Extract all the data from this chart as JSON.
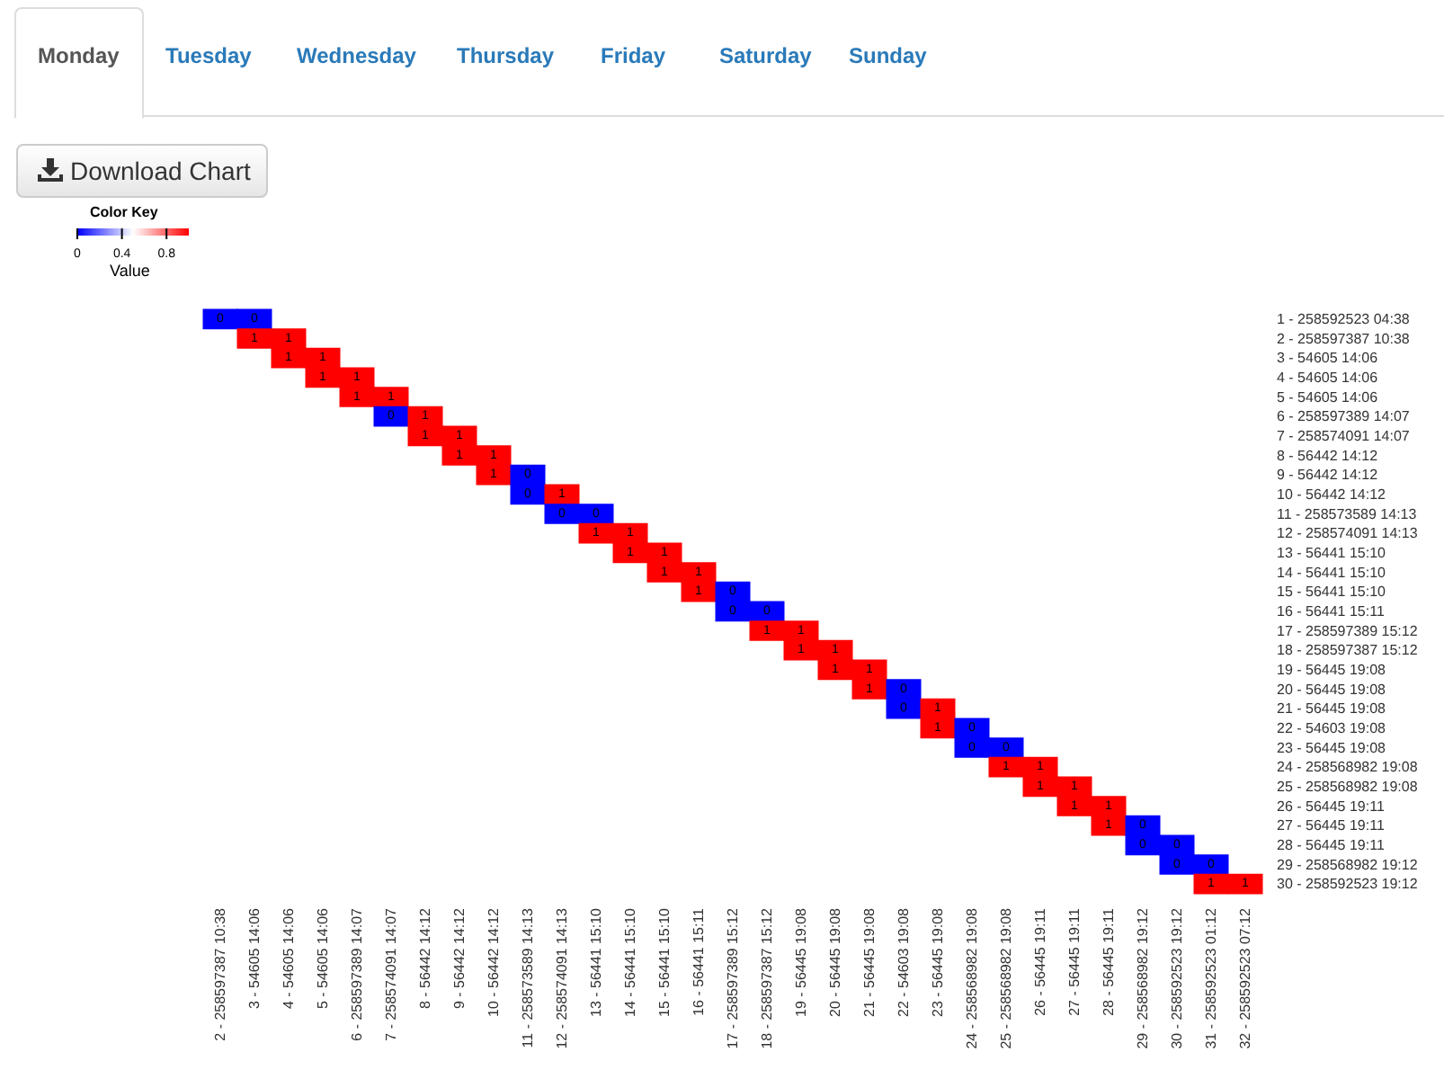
{
  "chart_data": {
    "type": "heatmap",
    "annotations": [
      "Monday",
      "Tuesday",
      "Wednesday",
      "Thursday",
      "Friday",
      "Saturday",
      "Sunday",
      "Download Chart"
    ],
    "legend_title": "Color Key",
    "clabel": "Value",
    "clim": [
      0,
      1
    ],
    "cticks": [
      0,
      0.4,
      0.8
    ],
    "colors": [
      "#0000ff",
      "#ffffff",
      "#ff0000"
    ],
    "data_labels": true,
    "categories": [
      "2 - 258597387 10:38",
      "3 - 54605 14:06",
      "4 - 54605 14:06",
      "5 - 54605 14:06",
      "6 - 258597389 14:07",
      "7 - 258574091 14:07",
      "8 - 56442 14:12",
      "9 - 56442 14:12",
      "10 - 56442 14:12",
      "11 - 258573589 14:13",
      "12 - 258574091 14:13",
      "13 - 56441 15:10",
      "14 - 56441 15:10",
      "15 - 56441 15:10",
      "16 - 56441 15:11",
      "17 - 258597389 15:12",
      "18 - 258597387 15:12",
      "19 - 56445 19:08",
      "20 - 56445 19:08",
      "21 - 56445 19:08",
      "22 - 54603 19:08",
      "23 - 56445 19:08",
      "24 - 258568982 19:08",
      "25 - 258568982 19:08",
      "26 - 56445 19:11",
      "27 - 56445 19:11",
      "28 - 56445 19:11",
      "29 - 258568982 19:12",
      "30 - 258592523 19:12",
      "31 - 258592523 01:12",
      "32 - 258592523 07:12"
    ],
    "y_categories": [
      "1 - 258592523 04:38",
      "2 - 258597387 10:38",
      "3 - 54605 14:06",
      "4 - 54605 14:06",
      "5 - 54605 14:06",
      "6 - 258597389 14:07",
      "7 - 258574091 14:07",
      "8 - 56442 14:12",
      "9 - 56442 14:12",
      "10 - 56442 14:12",
      "11 - 258573589 14:13",
      "12 - 258574091 14:13",
      "13 - 56441 15:10",
      "14 - 56441 15:10",
      "15 - 56441 15:10",
      "16 - 56441 15:11",
      "17 - 258597389 15:12",
      "18 - 258597387 15:12",
      "19 - 56445 19:08",
      "20 - 56445 19:08",
      "21 - 56445 19:08",
      "22 - 54603 19:08",
      "23 - 56445 19:08",
      "24 - 258568982 19:08",
      "25 - 258568982 19:08",
      "26 - 56445 19:11",
      "27 - 56445 19:11",
      "28 - 56445 19:11",
      "29 - 258568982 19:12",
      "30 - 258592523 19:12"
    ],
    "cells": [
      [
        0,
        0,
        null,
        null,
        null,
        null,
        null,
        null,
        null,
        null,
        null,
        null,
        null,
        null,
        null,
        null,
        null,
        null,
        null,
        null,
        null,
        null,
        null,
        null,
        null,
        null,
        null,
        null,
        null,
        null,
        null
      ],
      [
        null,
        1,
        1,
        null,
        null,
        null,
        null,
        null,
        null,
        null,
        null,
        null,
        null,
        null,
        null,
        null,
        null,
        null,
        null,
        null,
        null,
        null,
        null,
        null,
        null,
        null,
        null,
        null,
        null,
        null,
        null
      ],
      [
        null,
        null,
        1,
        1,
        null,
        null,
        null,
        null,
        null,
        null,
        null,
        null,
        null,
        null,
        null,
        null,
        null,
        null,
        null,
        null,
        null,
        null,
        null,
        null,
        null,
        null,
        null,
        null,
        null,
        null,
        null
      ],
      [
        null,
        null,
        null,
        1,
        1,
        null,
        null,
        null,
        null,
        null,
        null,
        null,
        null,
        null,
        null,
        null,
        null,
        null,
        null,
        null,
        null,
        null,
        null,
        null,
        null,
        null,
        null,
        null,
        null,
        null,
        null
      ],
      [
        null,
        null,
        null,
        null,
        1,
        1,
        null,
        null,
        null,
        null,
        null,
        null,
        null,
        null,
        null,
        null,
        null,
        null,
        null,
        null,
        null,
        null,
        null,
        null,
        null,
        null,
        null,
        null,
        null,
        null,
        null
      ],
      [
        null,
        null,
        null,
        null,
        null,
        0,
        1,
        null,
        null,
        null,
        null,
        null,
        null,
        null,
        null,
        null,
        null,
        null,
        null,
        null,
        null,
        null,
        null,
        null,
        null,
        null,
        null,
        null,
        null,
        null,
        null
      ],
      [
        null,
        null,
        null,
        null,
        null,
        null,
        1,
        1,
        null,
        null,
        null,
        null,
        null,
        null,
        null,
        null,
        null,
        null,
        null,
        null,
        null,
        null,
        null,
        null,
        null,
        null,
        null,
        null,
        null,
        null,
        null
      ],
      [
        null,
        null,
        null,
        null,
        null,
        null,
        null,
        1,
        1,
        null,
        null,
        null,
        null,
        null,
        null,
        null,
        null,
        null,
        null,
        null,
        null,
        null,
        null,
        null,
        null,
        null,
        null,
        null,
        null,
        null,
        null
      ],
      [
        null,
        null,
        null,
        null,
        null,
        null,
        null,
        null,
        1,
        0,
        null,
        null,
        null,
        null,
        null,
        null,
        null,
        null,
        null,
        null,
        null,
        null,
        null,
        null,
        null,
        null,
        null,
        null,
        null,
        null,
        null
      ],
      [
        null,
        null,
        null,
        null,
        null,
        null,
        null,
        null,
        null,
        0,
        1,
        null,
        null,
        null,
        null,
        null,
        null,
        null,
        null,
        null,
        null,
        null,
        null,
        null,
        null,
        null,
        null,
        null,
        null,
        null,
        null
      ],
      [
        null,
        null,
        null,
        null,
        null,
        null,
        null,
        null,
        null,
        null,
        0,
        0,
        null,
        null,
        null,
        null,
        null,
        null,
        null,
        null,
        null,
        null,
        null,
        null,
        null,
        null,
        null,
        null,
        null,
        null,
        null
      ],
      [
        null,
        null,
        null,
        null,
        null,
        null,
        null,
        null,
        null,
        null,
        null,
        1,
        1,
        null,
        null,
        null,
        null,
        null,
        null,
        null,
        null,
        null,
        null,
        null,
        null,
        null,
        null,
        null,
        null,
        null,
        null
      ],
      [
        null,
        null,
        null,
        null,
        null,
        null,
        null,
        null,
        null,
        null,
        null,
        null,
        1,
        1,
        null,
        null,
        null,
        null,
        null,
        null,
        null,
        null,
        null,
        null,
        null,
        null,
        null,
        null,
        null,
        null,
        null
      ],
      [
        null,
        null,
        null,
        null,
        null,
        null,
        null,
        null,
        null,
        null,
        null,
        null,
        null,
        1,
        1,
        null,
        null,
        null,
        null,
        null,
        null,
        null,
        null,
        null,
        null,
        null,
        null,
        null,
        null,
        null,
        null
      ],
      [
        null,
        null,
        null,
        null,
        null,
        null,
        null,
        null,
        null,
        null,
        null,
        null,
        null,
        null,
        1,
        0,
        null,
        null,
        null,
        null,
        null,
        null,
        null,
        null,
        null,
        null,
        null,
        null,
        null,
        null,
        null
      ],
      [
        null,
        null,
        null,
        null,
        null,
        null,
        null,
        null,
        null,
        null,
        null,
        null,
        null,
        null,
        null,
        0,
        0,
        null,
        null,
        null,
        null,
        null,
        null,
        null,
        null,
        null,
        null,
        null,
        null,
        null,
        null
      ],
      [
        null,
        null,
        null,
        null,
        null,
        null,
        null,
        null,
        null,
        null,
        null,
        null,
        null,
        null,
        null,
        null,
        1,
        1,
        null,
        null,
        null,
        null,
        null,
        null,
        null,
        null,
        null,
        null,
        null,
        null,
        null
      ],
      [
        null,
        null,
        null,
        null,
        null,
        null,
        null,
        null,
        null,
        null,
        null,
        null,
        null,
        null,
        null,
        null,
        null,
        1,
        1,
        null,
        null,
        null,
        null,
        null,
        null,
        null,
        null,
        null,
        null,
        null,
        null
      ],
      [
        null,
        null,
        null,
        null,
        null,
        null,
        null,
        null,
        null,
        null,
        null,
        null,
        null,
        null,
        null,
        null,
        null,
        null,
        1,
        1,
        null,
        null,
        null,
        null,
        null,
        null,
        null,
        null,
        null,
        null,
        null
      ],
      [
        null,
        null,
        null,
        null,
        null,
        null,
        null,
        null,
        null,
        null,
        null,
        null,
        null,
        null,
        null,
        null,
        null,
        null,
        null,
        1,
        0,
        null,
        null,
        null,
        null,
        null,
        null,
        null,
        null,
        null,
        null
      ],
      [
        null,
        null,
        null,
        null,
        null,
        null,
        null,
        null,
        null,
        null,
        null,
        null,
        null,
        null,
        null,
        null,
        null,
        null,
        null,
        null,
        0,
        1,
        null,
        null,
        null,
        null,
        null,
        null,
        null,
        null,
        null
      ],
      [
        null,
        null,
        null,
        null,
        null,
        null,
        null,
        null,
        null,
        null,
        null,
        null,
        null,
        null,
        null,
        null,
        null,
        null,
        null,
        null,
        null,
        1,
        0,
        null,
        null,
        null,
        null,
        null,
        null,
        null,
        null
      ],
      [
        null,
        null,
        null,
        null,
        null,
        null,
        null,
        null,
        null,
        null,
        null,
        null,
        null,
        null,
        null,
        null,
        null,
        null,
        null,
        null,
        null,
        null,
        0,
        0,
        null,
        null,
        null,
        null,
        null,
        null,
        null
      ],
      [
        null,
        null,
        null,
        null,
        null,
        null,
        null,
        null,
        null,
        null,
        null,
        null,
        null,
        null,
        null,
        null,
        null,
        null,
        null,
        null,
        null,
        null,
        null,
        1,
        1,
        null,
        null,
        null,
        null,
        null,
        null
      ],
      [
        null,
        null,
        null,
        null,
        null,
        null,
        null,
        null,
        null,
        null,
        null,
        null,
        null,
        null,
        null,
        null,
        null,
        null,
        null,
        null,
        null,
        null,
        null,
        null,
        1,
        1,
        null,
        null,
        null,
        null,
        null
      ],
      [
        null,
        null,
        null,
        null,
        null,
        null,
        null,
        null,
        null,
        null,
        null,
        null,
        null,
        null,
        null,
        null,
        null,
        null,
        null,
        null,
        null,
        null,
        null,
        null,
        null,
        1,
        1,
        null,
        null,
        null,
        null
      ],
      [
        null,
        null,
        null,
        null,
        null,
        null,
        null,
        null,
        null,
        null,
        null,
        null,
        null,
        null,
        null,
        null,
        null,
        null,
        null,
        null,
        null,
        null,
        null,
        null,
        null,
        null,
        1,
        0,
        null,
        null,
        null
      ],
      [
        null,
        null,
        null,
        null,
        null,
        null,
        null,
        null,
        null,
        null,
        null,
        null,
        null,
        null,
        null,
        null,
        null,
        null,
        null,
        null,
        null,
        null,
        null,
        null,
        null,
        null,
        null,
        0,
        0,
        null,
        null
      ],
      [
        null,
        null,
        null,
        null,
        null,
        null,
        null,
        null,
        null,
        null,
        null,
        null,
        null,
        null,
        null,
        null,
        null,
        null,
        null,
        null,
        null,
        null,
        null,
        null,
        null,
        null,
        null,
        null,
        0,
        0,
        null
      ],
      [
        null,
        null,
        null,
        null,
        null,
        null,
        null,
        null,
        null,
        null,
        null,
        null,
        null,
        null,
        null,
        null,
        null,
        null,
        null,
        null,
        null,
        null,
        null,
        null,
        null,
        null,
        null,
        null,
        null,
        1,
        1
      ]
    ]
  }
}
